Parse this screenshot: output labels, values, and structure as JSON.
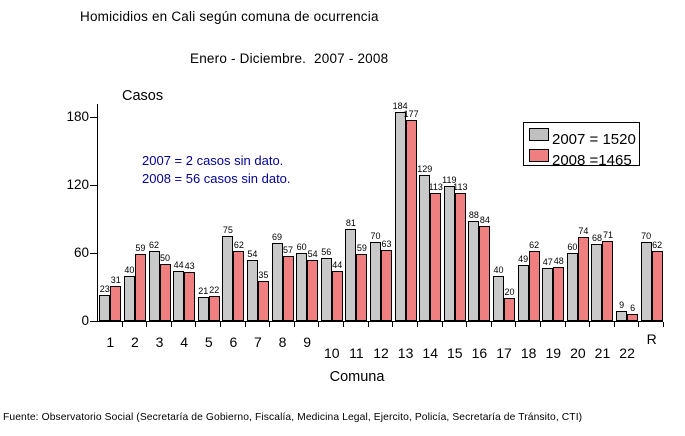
{
  "page": {
    "footer_source": "Fuente: Observatorio Social (Secretaría de Gobierno, Fiscalía, Medicina Legal, Ejercito, Policía, Secretaría de Tránsito, CTI)"
  },
  "annotation": {
    "line1": "2007 = 2 casos sin dato.",
    "line2": "2008 = 56 casos sin dato.",
    "color": "#000099"
  },
  "legend": {
    "items": [
      {
        "label": "2007 = 1520",
        "color": "#c0c0c0"
      },
      {
        "label": "2008 =1465",
        "color": "#f08080"
      }
    ]
  },
  "chart_data": {
    "type": "bar",
    "title": "Homicidios en Cali según comuna de ocurrencia",
    "subtitle": "Enero - Diciembre.  2007 - 2008",
    "xlabel": "Comuna",
    "ylabel": "Casos",
    "categories": [
      "1",
      "2",
      "3",
      "4",
      "5",
      "6",
      "7",
      "8",
      "9",
      "10",
      "11",
      "12",
      "13",
      "14",
      "15",
      "16",
      "17",
      "18",
      "19",
      "20",
      "21",
      "22",
      "R"
    ],
    "series": [
      {
        "name": "2007",
        "total": 1520,
        "color": "#c9c9c9",
        "values": [
          23,
          40,
          62,
          44,
          21,
          75,
          54,
          69,
          60,
          56,
          81,
          70,
          184,
          129,
          119,
          88,
          40,
          49,
          47,
          60,
          68,
          9,
          70
        ]
      },
      {
        "name": "2008",
        "total": 1465,
        "color": "#f08080",
        "values": [
          31,
          59,
          50,
          43,
          22,
          62,
          35,
          57,
          54,
          44,
          59,
          63,
          177,
          113,
          113,
          84,
          20,
          62,
          48,
          74,
          71,
          6,
          62
        ]
      }
    ],
    "yticks": [
      0,
      60,
      120,
      180
    ],
    "ylim": [
      0,
      192
    ],
    "grid": false,
    "legend_position": "upper-right",
    "annotations": [
      "2007 = 2 casos sin dato.",
      "2008 = 56 casos sin dato."
    ]
  }
}
